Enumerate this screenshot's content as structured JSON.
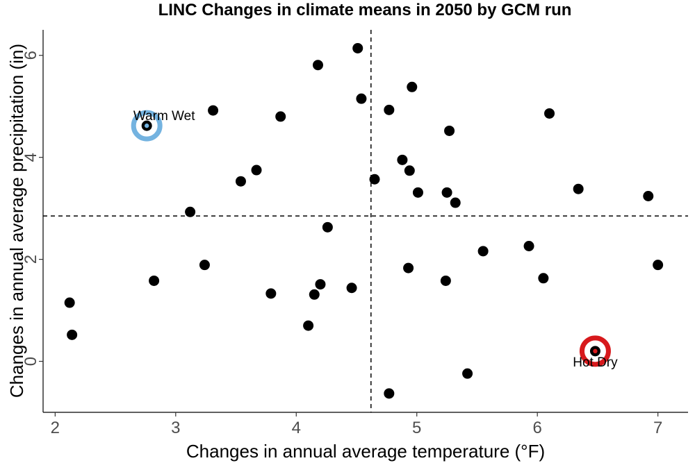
{
  "chart_data": {
    "type": "scatter",
    "title": "LINC Changes in climate means in 2050 by GCM run",
    "xlabel": "Changes in annual average temperature (°F)",
    "ylabel": "Changes in annual average precipitation (in)",
    "xlim": [
      1.9,
      7.25
    ],
    "ylim": [
      -1.0,
      6.5
    ],
    "xticks": [
      2,
      3,
      4,
      5,
      6,
      7
    ],
    "yticks": [
      0,
      2,
      4,
      6
    ],
    "grid": false,
    "vline_x": 4.62,
    "hline_y": 2.85,
    "point_color": "#000000",
    "points": [
      {
        "x": 2.12,
        "y": 1.15
      },
      {
        "x": 2.14,
        "y": 0.52
      },
      {
        "x": 2.82,
        "y": 1.58
      },
      {
        "x": 3.12,
        "y": 2.93
      },
      {
        "x": 3.24,
        "y": 1.89
      },
      {
        "x": 3.31,
        "y": 4.92
      },
      {
        "x": 3.54,
        "y": 3.53
      },
      {
        "x": 3.67,
        "y": 3.75
      },
      {
        "x": 3.79,
        "y": 1.33
      },
      {
        "x": 3.87,
        "y": 4.8
      },
      {
        "x": 4.1,
        "y": 0.7
      },
      {
        "x": 4.15,
        "y": 1.31
      },
      {
        "x": 4.18,
        "y": 5.81
      },
      {
        "x": 4.2,
        "y": 1.51
      },
      {
        "x": 4.26,
        "y": 2.63
      },
      {
        "x": 4.46,
        "y": 1.44
      },
      {
        "x": 4.51,
        "y": 6.14
      },
      {
        "x": 4.54,
        "y": 5.15
      },
      {
        "x": 4.65,
        "y": 3.57
      },
      {
        "x": 4.77,
        "y": 4.93
      },
      {
        "x": 4.77,
        "y": -0.63
      },
      {
        "x": 4.88,
        "y": 3.95
      },
      {
        "x": 4.93,
        "y": 1.83
      },
      {
        "x": 4.94,
        "y": 3.74
      },
      {
        "x": 4.96,
        "y": 5.38
      },
      {
        "x": 5.01,
        "y": 3.31
      },
      {
        "x": 5.24,
        "y": 1.58
      },
      {
        "x": 5.25,
        "y": 3.31
      },
      {
        "x": 5.27,
        "y": 4.52
      },
      {
        "x": 5.32,
        "y": 3.11
      },
      {
        "x": 5.42,
        "y": -0.24
      },
      {
        "x": 5.55,
        "y": 2.16
      },
      {
        "x": 5.93,
        "y": 2.26
      },
      {
        "x": 6.05,
        "y": 1.63
      },
      {
        "x": 6.1,
        "y": 4.86
      },
      {
        "x": 6.34,
        "y": 3.38
      },
      {
        "x": 6.92,
        "y": 3.24
      },
      {
        "x": 7.0,
        "y": 1.89
      }
    ],
    "highlights": [
      {
        "label": "Warm Wet",
        "x": 2.76,
        "y": 4.62,
        "color": "#74b3e0"
      },
      {
        "label": "Hot Dry",
        "x": 6.48,
        "y": 0.2,
        "color": "#d7191c"
      }
    ]
  }
}
